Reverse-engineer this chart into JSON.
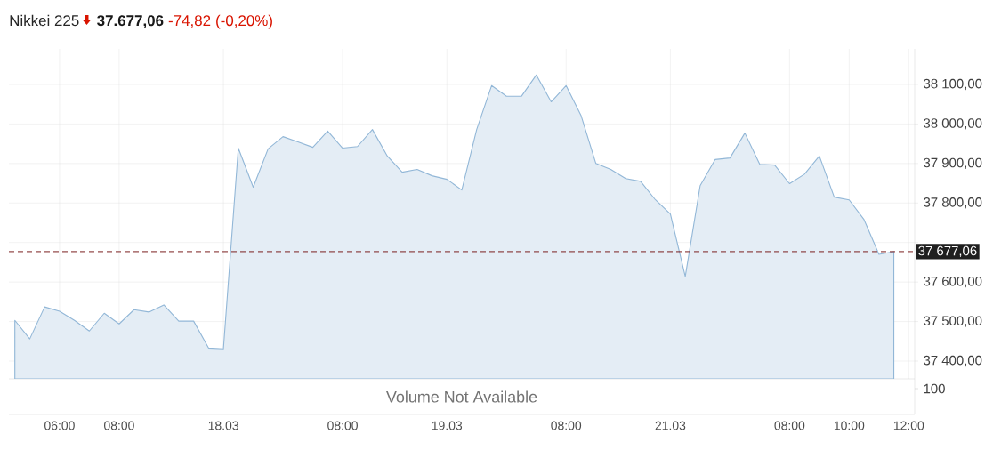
{
  "chart_data": [
    {
      "type": "area",
      "title": "Nikkei 225",
      "annotations": [
        "37.677,06",
        "-74,82",
        "(-0,20%)"
      ],
      "categories": [
        null,
        null,
        null,
        "06:00",
        null,
        null,
        null,
        "08:00",
        null,
        null,
        null,
        null,
        null,
        null,
        "18.03",
        null,
        null,
        null,
        null,
        null,
        null,
        null,
        "08:00",
        null,
        null,
        null,
        null,
        null,
        null,
        "19.03",
        null,
        null,
        null,
        null,
        null,
        null,
        null,
        "08:00",
        null,
        null,
        null,
        null,
        null,
        null,
        "21.03",
        null,
        null,
        null,
        null,
        null,
        null,
        null,
        "08:00",
        null,
        null,
        null,
        "10:00",
        null,
        null,
        null,
        "12:00"
      ],
      "values": [
        37503,
        37456,
        37537,
        37526,
        37503,
        37476,
        37521,
        37494,
        37530,
        37524,
        37542,
        37501,
        37501,
        37433,
        37431,
        37939,
        37840,
        37937,
        37968,
        37955,
        37941,
        37982,
        37939,
        37943,
        37986,
        37919,
        37878,
        37885,
        37869,
        37860,
        37833,
        37986,
        38097,
        38070,
        38070,
        38124,
        38056,
        38097,
        38022,
        37900,
        37885,
        37862,
        37855,
        37808,
        37772,
        37614,
        37844,
        37910,
        37914,
        37977,
        37898,
        37896,
        37849,
        37873,
        37919,
        37815,
        37808,
        37758,
        37670,
        37677,
        null
      ],
      "color": "#e4edf5",
      "ylim": [
        37355,
        38190
      ],
      "yticks": [
        {
          "value": 37400,
          "label": "37 400,00"
        },
        {
          "value": 37500,
          "label": "37 500,00"
        },
        {
          "value": 37600,
          "label": "37 600,00"
        },
        {
          "value": 37700,
          "label": null
        },
        {
          "value": 37800,
          "label": "37 800,00"
        },
        {
          "value": 37900,
          "label": "37 900,00"
        },
        {
          "value": 38000,
          "label": "38 000,00"
        },
        {
          "value": 38100,
          "label": "38 100,00"
        }
      ],
      "grid": true,
      "ref_lines": [
        {
          "axis": "y",
          "value": 37677.06,
          "label": "37 677,06",
          "color": "#7a1f1f",
          "line_style": "dashed"
        }
      ]
    },
    {
      "type": "other",
      "annotations": [
        "Volume Not Available",
        "100"
      ]
    }
  ]
}
